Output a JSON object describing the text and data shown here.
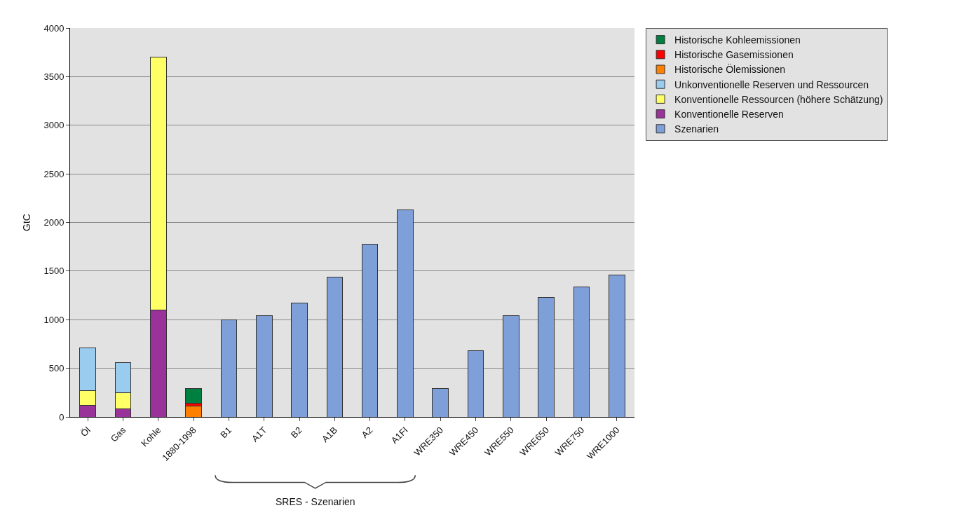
{
  "chart_data": {
    "type": "bar",
    "stacked": true,
    "ylabel": "GtC",
    "categories": [
      "Öl",
      "Gas",
      "Kohle",
      "1880-1998",
      "B1",
      "A1T",
      "B2",
      "A1B",
      "A2",
      "A1FI",
      "WRE350",
      "WRE450",
      "WRE550",
      "WRE650",
      "WRE750",
      "WRE1000"
    ],
    "series": [
      {
        "name": "Szenarien",
        "color": "#7f9fd8",
        "values": [
          null,
          null,
          null,
          null,
          1000,
          1040,
          1170,
          1440,
          1780,
          2130,
          290,
          680,
          1040,
          1230,
          1340,
          1460
        ]
      },
      {
        "name": "Konventionelle Reserven",
        "color": "#993399",
        "values": [
          120,
          80,
          1100,
          null,
          null,
          null,
          null,
          null,
          null,
          null,
          null,
          null,
          null,
          null,
          null,
          null
        ]
      },
      {
        "name": "Konventionelle Ressourcen (höhere Schätzung)",
        "color": "#ffff66",
        "values": [
          150,
          170,
          2600,
          null,
          null,
          null,
          null,
          null,
          null,
          null,
          null,
          null,
          null,
          null,
          null,
          null
        ]
      },
      {
        "name": "Unkonventionelle Reserven und Ressourcen",
        "color": "#99ccee",
        "values": [
          440,
          310,
          null,
          null,
          null,
          null,
          null,
          null,
          null,
          null,
          null,
          null,
          null,
          null,
          null,
          null
        ]
      },
      {
        "name": "Historische Ölemissionen",
        "color": "#ff8000",
        "values": [
          null,
          null,
          null,
          110,
          null,
          null,
          null,
          null,
          null,
          null,
          null,
          null,
          null,
          null,
          null,
          null
        ]
      },
      {
        "name": "Historische Gasemissionen",
        "color": "#ff0000",
        "values": [
          null,
          null,
          null,
          30,
          null,
          null,
          null,
          null,
          null,
          null,
          null,
          null,
          null,
          null,
          null,
          null
        ]
      },
      {
        "name": "Historische Kohleemissionen",
        "color": "#008040",
        "values": [
          null,
          null,
          null,
          150,
          null,
          null,
          null,
          null,
          null,
          null,
          null,
          null,
          null,
          null,
          null,
          null
        ]
      }
    ],
    "ylim": [
      0,
      4000
    ],
    "yticks": [
      0,
      500,
      1000,
      1500,
      2000,
      2500,
      3000,
      3500,
      4000
    ],
    "grid": "y",
    "legend": "top right",
    "annotations": [
      "SRES - Szenarien"
    ]
  }
}
